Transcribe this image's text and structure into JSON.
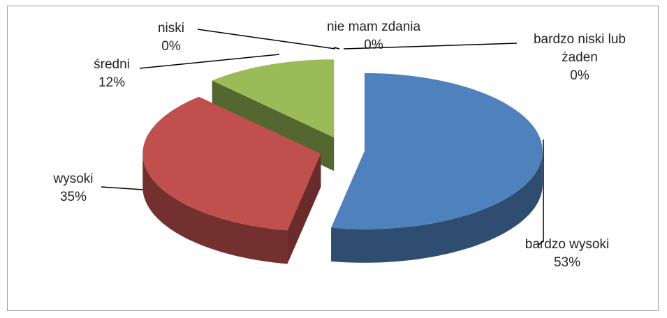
{
  "chart_data": {
    "type": "pie",
    "categories": [
      "bardzo wysoki",
      "wysoki",
      "średni",
      "niski",
      "nie mam zdania",
      "bardzo niski lub żaden"
    ],
    "values": [
      53,
      35,
      12,
      0,
      0,
      0
    ],
    "value_labels": [
      "53%",
      "35%",
      "12%",
      "0%",
      "0%",
      "0%"
    ],
    "colors": [
      "#4f81bd",
      "#c0504d",
      "#9bbb59",
      "#8064a2",
      "#4bacc6",
      "#f79646"
    ],
    "exploded": true,
    "three_d": true
  }
}
